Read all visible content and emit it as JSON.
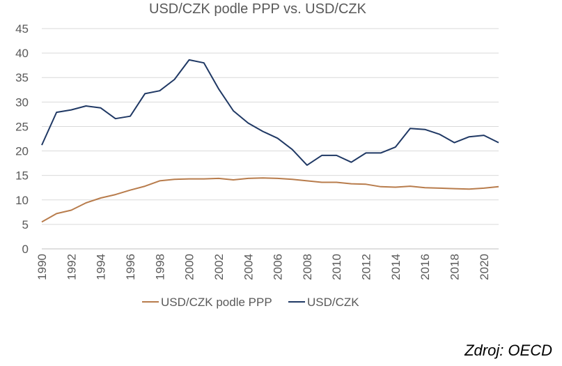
{
  "chart_data": {
    "type": "line",
    "title": "USD/CZK podle PPP vs. USD/CZK",
    "xlabel": "",
    "ylabel": "",
    "xlim": [
      1990,
      2021
    ],
    "ylim": [
      0,
      45
    ],
    "yticks": [
      0,
      5,
      10,
      15,
      20,
      25,
      30,
      35,
      40,
      45
    ],
    "xticks": [
      1990,
      1992,
      1994,
      1996,
      1998,
      2000,
      2002,
      2004,
      2006,
      2008,
      2010,
      2012,
      2014,
      2016,
      2018,
      2020
    ],
    "grid": "horizontal",
    "legend_position": "bottom",
    "x": [
      1990,
      1991,
      1992,
      1993,
      1994,
      1995,
      1996,
      1997,
      1998,
      1999,
      2000,
      2001,
      2002,
      2003,
      2004,
      2005,
      2006,
      2007,
      2008,
      2009,
      2010,
      2011,
      2012,
      2013,
      2014,
      2015,
      2016,
      2017,
      2018,
      2019,
      2020,
      2021
    ],
    "series": [
      {
        "name": "USD/CZK podle PPP",
        "color": "#B87C4C",
        "values": [
          5.5,
          7.2,
          7.9,
          9.4,
          10.4,
          11.1,
          12.0,
          12.8,
          13.9,
          14.2,
          14.3,
          14.3,
          14.4,
          14.1,
          14.4,
          14.5,
          14.4,
          14.2,
          13.9,
          13.6,
          13.6,
          13.3,
          13.2,
          12.7,
          12.6,
          12.8,
          12.5,
          12.4,
          12.3,
          12.2,
          12.4,
          12.7
        ]
      },
      {
        "name": "USD/CZK",
        "color": "#1F3864",
        "values": [
          21.2,
          27.9,
          28.4,
          29.2,
          28.8,
          26.6,
          27.1,
          31.7,
          32.3,
          34.6,
          38.6,
          38.0,
          32.7,
          28.2,
          25.7,
          24.0,
          22.6,
          20.3,
          17.1,
          19.1,
          19.1,
          17.7,
          19.6,
          19.6,
          20.8,
          24.6,
          24.4,
          23.4,
          21.7,
          22.9,
          23.2,
          21.7
        ]
      }
    ]
  },
  "source_note": "Zdroj: OECD"
}
